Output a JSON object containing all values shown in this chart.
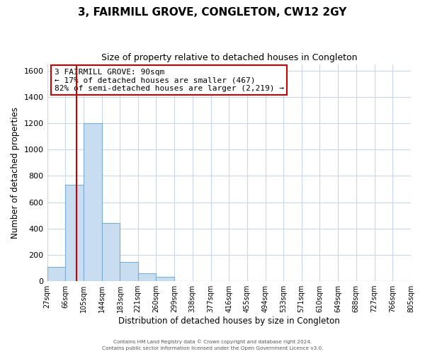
{
  "title": "3, FAIRMILL GROVE, CONGLETON, CW12 2GY",
  "subtitle": "Size of property relative to detached houses in Congleton",
  "xlabel": "Distribution of detached houses by size in Congleton",
  "ylabel": "Number of detached properties",
  "bin_edges": [
    27,
    66,
    105,
    144,
    183,
    221,
    260,
    299,
    338,
    377,
    416,
    455,
    494,
    533,
    571,
    610,
    649,
    688,
    727,
    766,
    805
  ],
  "bar_heights": [
    110,
    730,
    1200,
    440,
    145,
    60,
    35,
    0,
    0,
    0,
    0,
    0,
    0,
    0,
    0,
    0,
    0,
    0,
    0,
    0
  ],
  "bar_color": "#c8ddf0",
  "bar_edge_color": "#7bafd4",
  "vline_x": 90,
  "vline_color": "#cc0000",
  "ylim": [
    0,
    1650
  ],
  "yticks": [
    0,
    200,
    400,
    600,
    800,
    1000,
    1200,
    1400,
    1600
  ],
  "tick_labels": [
    "27sqm",
    "66sqm",
    "105sqm",
    "144sqm",
    "183sqm",
    "221sqm",
    "260sqm",
    "299sqm",
    "338sqm",
    "377sqm",
    "416sqm",
    "455sqm",
    "494sqm",
    "533sqm",
    "571sqm",
    "610sqm",
    "649sqm",
    "688sqm",
    "727sqm",
    "766sqm",
    "805sqm"
  ],
  "annotation_title": "3 FAIRMILL GROVE: 90sqm",
  "annotation_line1": "← 17% of detached houses are smaller (467)",
  "annotation_line2": "82% of semi-detached houses are larger (2,219) →",
  "annotation_box_color": "#ffffff",
  "annotation_box_edge": "#cc0000",
  "footer1": "Contains HM Land Registry data © Crown copyright and database right 2024.",
  "footer2": "Contains public sector information licensed under the Open Government Licence v3.0.",
  "background_color": "#ffffff",
  "grid_color": "#c8d8e8"
}
